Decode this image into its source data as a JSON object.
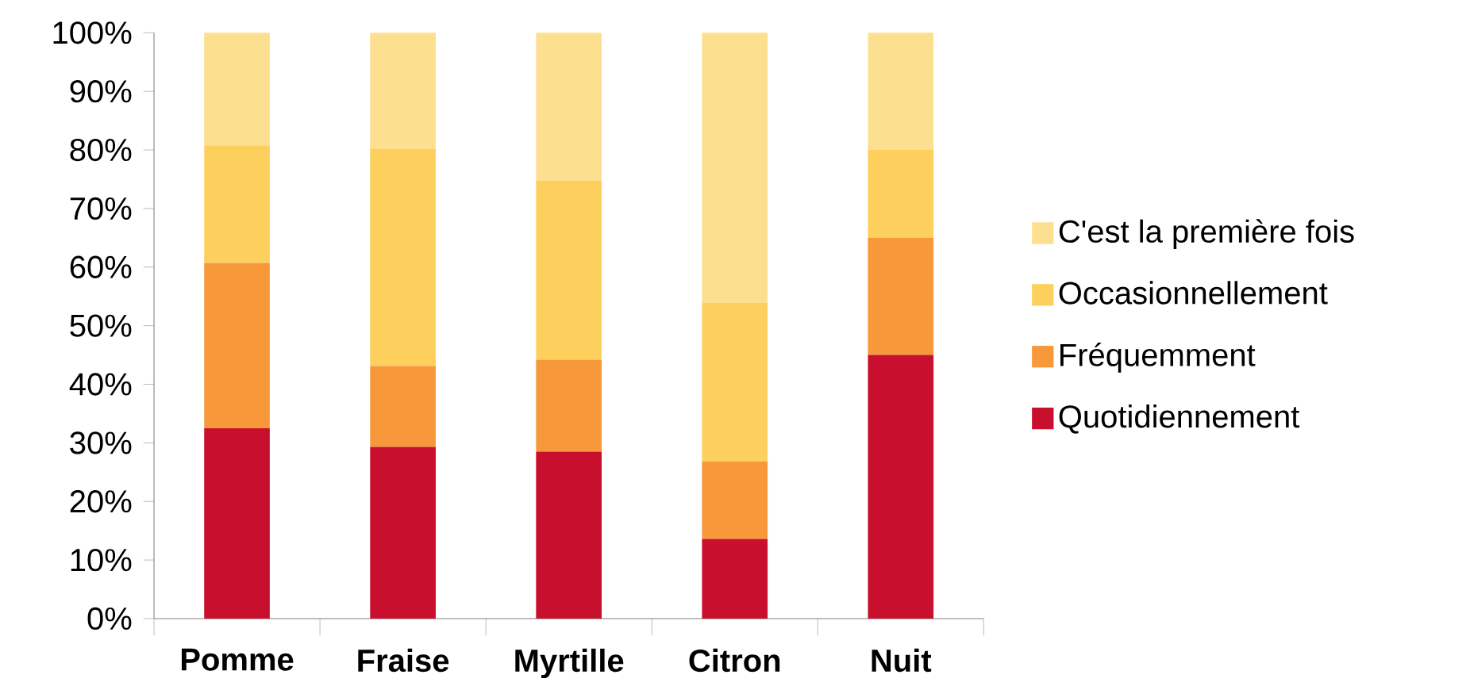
{
  "chart_data": {
    "type": "bar",
    "stacked": true,
    "legend": "right",
    "categories": [
      "Pomme",
      "Fraise",
      "Myrtille",
      "Citron",
      "Nuit"
    ],
    "series": [
      {
        "name": "Quotidiennement",
        "color": "#c8102e",
        "values": [
          32.5,
          29.3,
          28.5,
          13.6,
          45.0
        ]
      },
      {
        "name": "Fréquemment",
        "color": "#f7993b",
        "values": [
          28.2,
          13.8,
          15.7,
          13.2,
          20.0
        ]
      },
      {
        "name": "Occasionnellement",
        "color": "#fdd05d",
        "values": [
          20.1,
          37.1,
          30.6,
          27.1,
          15.0
        ]
      },
      {
        "name": "C'est la première fois",
        "color": "#fde08f",
        "values": [
          19.2,
          19.8,
          25.2,
          46.1,
          20.0
        ]
      }
    ],
    "ylim": [
      0,
      100
    ],
    "yticks": [
      {
        "value": 0,
        "label": "0%"
      },
      {
        "value": 10,
        "label": "10%"
      },
      {
        "value": 20,
        "label": "20%"
      },
      {
        "value": 30,
        "label": "30%"
      },
      {
        "value": 40,
        "label": "40%"
      },
      {
        "value": 50,
        "label": "50%"
      },
      {
        "value": 60,
        "label": "60%"
      },
      {
        "value": 70,
        "label": "70%"
      },
      {
        "value": 80,
        "label": "80%"
      },
      {
        "value": 90,
        "label": "90%"
      },
      {
        "value": 100,
        "label": "100%"
      }
    ]
  }
}
